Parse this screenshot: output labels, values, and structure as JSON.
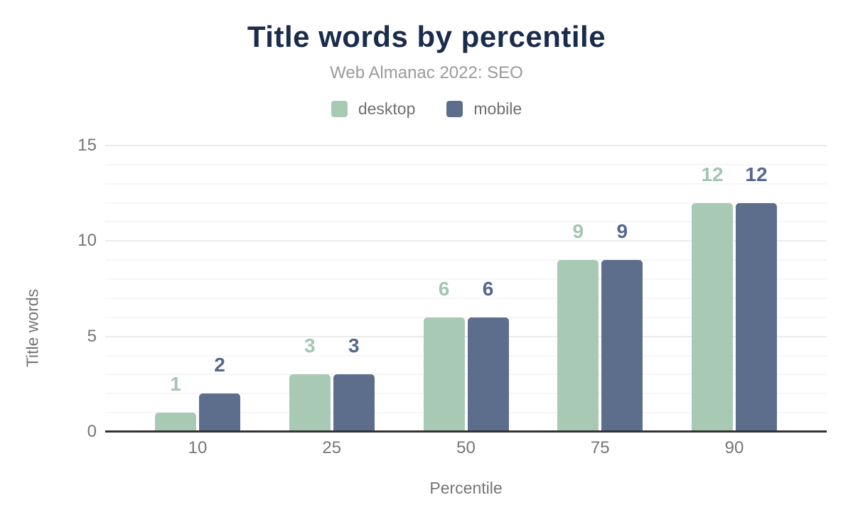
{
  "header": {
    "title": "Title words by percentile",
    "subtitle": "Web Almanac 2022: SEO"
  },
  "legend": [
    {
      "label": "desktop",
      "color": "#a8c9b4"
    },
    {
      "label": "mobile",
      "color": "#5d6e8d"
    }
  ],
  "axes": {
    "xlabel": "Percentile",
    "ylabel": "Title words"
  },
  "colors": {
    "title_navy": "#1a2b4c",
    "subtitle_gray": "#9a9a9a",
    "axis_text_gray": "#757575",
    "baseline_dark": "#333333",
    "grid_minor": "#f6f6f6",
    "grid_major": "#ebebeb",
    "desktop_sage": "#a8c9b4",
    "mobile_slate": "#5d6e8d"
  },
  "chart_data": {
    "type": "bar",
    "title": "Title words by percentile",
    "subtitle": "Web Almanac 2022: SEO",
    "categories": [
      "10",
      "25",
      "50",
      "75",
      "90"
    ],
    "series": [
      {
        "name": "desktop",
        "color": "#a8c9b4",
        "label_color": "#a3c6b0",
        "values": [
          1,
          3,
          6,
          9,
          12
        ]
      },
      {
        "name": "mobile",
        "color": "#5d6e8d",
        "label_color": "#54678e",
        "values": [
          2,
          3,
          6,
          9,
          12
        ]
      }
    ],
    "xlabel": "Percentile",
    "ylabel": "Title words",
    "ylim": [
      0,
      15
    ],
    "yticks": [
      0,
      5,
      10,
      15
    ],
    "grid": "horizontal minor every 1 unit, major every 5 units",
    "legend_position": "top center",
    "data_labels": "shown above bars in series color, bold"
  }
}
